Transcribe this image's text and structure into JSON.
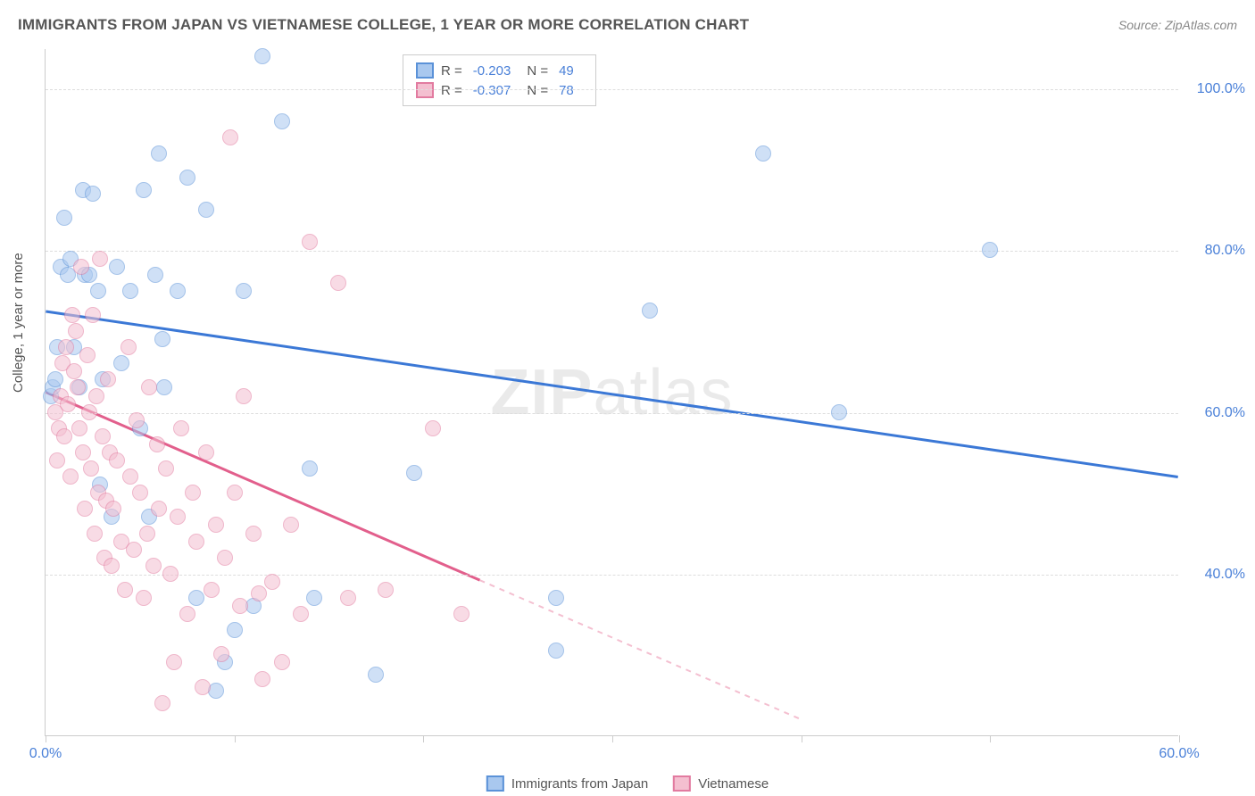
{
  "header": {
    "title": "IMMIGRANTS FROM JAPAN VS VIETNAMESE COLLEGE, 1 YEAR OR MORE CORRELATION CHART",
    "source": "Source: ZipAtlas.com"
  },
  "watermark_text": "ZIPatlas",
  "chart": {
    "type": "scatter",
    "ylabel": "College, 1 year or more",
    "xlim": [
      0,
      60
    ],
    "ylim": [
      20,
      105
    ],
    "background_color": "#ffffff",
    "grid_color": "#dddddd",
    "axis_color": "#cccccc",
    "tick_label_color": "#4a80d8",
    "yticks": [
      40,
      60,
      80,
      100
    ],
    "ytick_labels": [
      "40.0%",
      "60.0%",
      "80.0%",
      "100.0%"
    ],
    "xticks": [
      0,
      10,
      20,
      30,
      40,
      50,
      60
    ],
    "xtick_labels": {
      "0": "0.0%",
      "60": "60.0%"
    },
    "marker_size": 18,
    "series": [
      {
        "name": "Immigrants from Japan",
        "fill_color": "#a9c8ef",
        "border_color": "#5b92d8",
        "line_color": "#3b78d6",
        "r": "-0.203",
        "n": "49",
        "regression": {
          "x1": 0,
          "y1": 72.5,
          "x2": 60,
          "y2": 52,
          "dash_after_x": null
        },
        "points": [
          [
            0.3,
            62
          ],
          [
            0.4,
            63
          ],
          [
            0.5,
            64
          ],
          [
            0.6,
            68
          ],
          [
            0.8,
            78
          ],
          [
            1.0,
            84
          ],
          [
            1.2,
            77
          ],
          [
            1.3,
            79
          ],
          [
            1.5,
            68
          ],
          [
            1.8,
            63
          ],
          [
            2.0,
            87.5
          ],
          [
            2.1,
            77
          ],
          [
            2.3,
            77
          ],
          [
            2.5,
            87
          ],
          [
            2.8,
            75
          ],
          [
            2.9,
            51
          ],
          [
            3.0,
            64
          ],
          [
            3.5,
            47
          ],
          [
            3.8,
            78
          ],
          [
            4.0,
            66
          ],
          [
            4.5,
            75
          ],
          [
            5.0,
            58
          ],
          [
            5.2,
            87.5
          ],
          [
            5.5,
            47
          ],
          [
            5.8,
            77
          ],
          [
            6.0,
            92
          ],
          [
            6.2,
            69
          ],
          [
            6.3,
            63
          ],
          [
            7.0,
            75
          ],
          [
            7.5,
            89
          ],
          [
            8.0,
            37
          ],
          [
            8.5,
            85
          ],
          [
            9.0,
            25.5
          ],
          [
            9.5,
            29
          ],
          [
            10.0,
            33
          ],
          [
            10.5,
            75
          ],
          [
            11.0,
            36
          ],
          [
            11.5,
            104
          ],
          [
            12.5,
            96
          ],
          [
            14.0,
            53
          ],
          [
            14.2,
            37
          ],
          [
            17.5,
            27.5
          ],
          [
            19.5,
            52.5
          ],
          [
            27.0,
            37
          ],
          [
            27.0,
            30.5
          ],
          [
            32.0,
            72.5
          ],
          [
            38.0,
            92
          ],
          [
            42.0,
            60
          ],
          [
            50.0,
            80
          ]
        ]
      },
      {
        "name": "Vietnamese",
        "fill_color": "#f4bfd0",
        "border_color": "#e27ba0",
        "line_color": "#e25f8c",
        "r": "-0.307",
        "n": "78",
        "regression": {
          "x1": 0,
          "y1": 62.5,
          "x2": 40,
          "y2": 22,
          "dash_after_x": 23
        },
        "points": [
          [
            0.5,
            60
          ],
          [
            0.6,
            54
          ],
          [
            0.7,
            58
          ],
          [
            0.8,
            62
          ],
          [
            0.9,
            66
          ],
          [
            1.0,
            57
          ],
          [
            1.1,
            68
          ],
          [
            1.2,
            61
          ],
          [
            1.3,
            52
          ],
          [
            1.4,
            72
          ],
          [
            1.5,
            65
          ],
          [
            1.6,
            70
          ],
          [
            1.7,
            63
          ],
          [
            1.8,
            58
          ],
          [
            1.9,
            78
          ],
          [
            2.0,
            55
          ],
          [
            2.1,
            48
          ],
          [
            2.2,
            67
          ],
          [
            2.3,
            60
          ],
          [
            2.4,
            53
          ],
          [
            2.5,
            72
          ],
          [
            2.6,
            45
          ],
          [
            2.7,
            62
          ],
          [
            2.8,
            50
          ],
          [
            2.9,
            79
          ],
          [
            3.0,
            57
          ],
          [
            3.1,
            42
          ],
          [
            3.2,
            49
          ],
          [
            3.3,
            64
          ],
          [
            3.4,
            55
          ],
          [
            3.5,
            41
          ],
          [
            3.6,
            48
          ],
          [
            3.8,
            54
          ],
          [
            4.0,
            44
          ],
          [
            4.2,
            38
          ],
          [
            4.4,
            68
          ],
          [
            4.5,
            52
          ],
          [
            4.7,
            43
          ],
          [
            4.8,
            59
          ],
          [
            5.0,
            50
          ],
          [
            5.2,
            37
          ],
          [
            5.4,
            45
          ],
          [
            5.5,
            63
          ],
          [
            5.7,
            41
          ],
          [
            5.9,
            56
          ],
          [
            6.0,
            48
          ],
          [
            6.2,
            24
          ],
          [
            6.4,
            53
          ],
          [
            6.6,
            40
          ],
          [
            6.8,
            29
          ],
          [
            7.0,
            47
          ],
          [
            7.2,
            58
          ],
          [
            7.5,
            35
          ],
          [
            7.8,
            50
          ],
          [
            8.0,
            44
          ],
          [
            8.3,
            26
          ],
          [
            8.5,
            55
          ],
          [
            8.8,
            38
          ],
          [
            9.0,
            46
          ],
          [
            9.3,
            30
          ],
          [
            9.5,
            42
          ],
          [
            9.8,
            94
          ],
          [
            10.0,
            50
          ],
          [
            10.3,
            36
          ],
          [
            10.5,
            62
          ],
          [
            11.0,
            45
          ],
          [
            11.3,
            37.5
          ],
          [
            11.5,
            27
          ],
          [
            12.0,
            39
          ],
          [
            12.5,
            29
          ],
          [
            13.0,
            46
          ],
          [
            13.5,
            35
          ],
          [
            14.0,
            81
          ],
          [
            15.5,
            76
          ],
          [
            16.0,
            37
          ],
          [
            18.0,
            38
          ],
          [
            20.5,
            58
          ],
          [
            22.0,
            35
          ]
        ]
      }
    ]
  },
  "legend_top": {
    "r_label": "R =",
    "n_label": "N ="
  },
  "legend_bottom": {
    "items": [
      "Immigrants from Japan",
      "Vietnamese"
    ]
  }
}
